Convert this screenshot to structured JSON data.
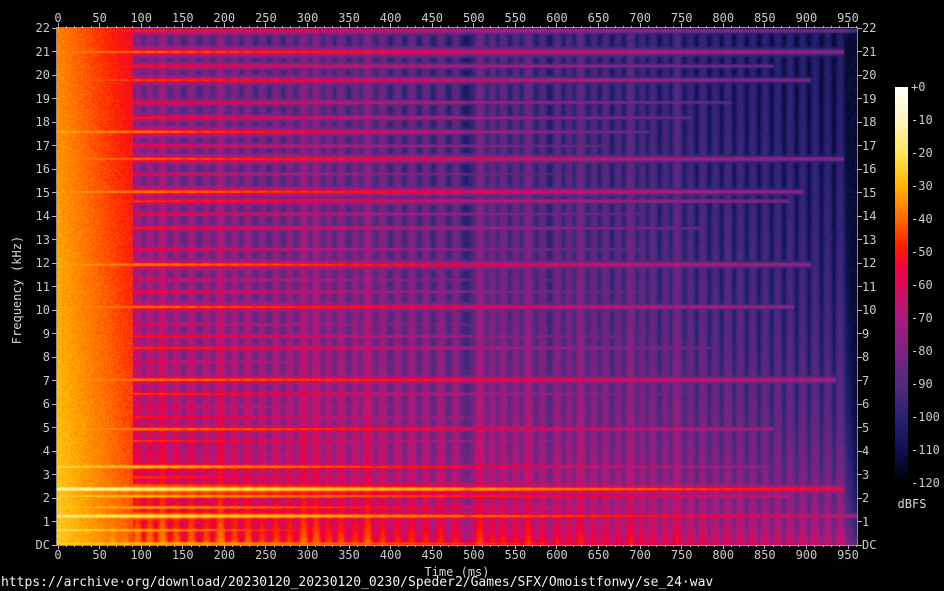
{
  "page": {
    "background": "#000000",
    "caption": "https://archive·org/download/20230120_20230120_0230/Speder2/Games/SFX/Omoistfonwy/se_24·wav"
  },
  "chart_data": {
    "type": "heatmap",
    "subtype": "audio-spectrogram",
    "title": "",
    "xlabel": "Time (ms)",
    "ylabel": "Frequency (kHz)",
    "x_range_ms": [
      0,
      961
    ],
    "y_range_khz": [
      0,
      22
    ],
    "grid": false,
    "x_ticks": {
      "values": [
        0,
        50,
        100,
        150,
        200,
        250,
        300,
        350,
        400,
        450,
        500,
        550,
        600,
        650,
        700,
        750,
        800,
        850,
        900,
        950
      ],
      "labels": [
        "0",
        "50",
        "100",
        "150",
        "200",
        "250",
        "300",
        "350",
        "400",
        "450",
        "500",
        "550",
        "600",
        "650",
        "700",
        "750",
        "800",
        "850",
        "900",
        "950"
      ],
      "minor_step_ms": 10
    },
    "y_ticks": {
      "values": [
        22,
        21,
        20,
        19,
        18,
        17,
        16,
        15,
        14,
        13,
        12,
        11,
        10,
        9,
        8,
        7,
        6,
        5,
        4,
        3,
        2,
        1,
        0
      ],
      "labels": [
        "22",
        "21",
        "20",
        "19",
        "18",
        "17",
        "16",
        "15",
        "14",
        "13",
        "12",
        "11",
        "10",
        "9",
        "8",
        "7",
        "6",
        "5",
        "4",
        "3",
        "2",
        "1",
        "DC"
      ]
    },
    "colorbar": {
      "label": "dBFS",
      "range_db": [
        0,
        -120
      ],
      "tick_labels": [
        "+0",
        "-10",
        "-20",
        "-30",
        "-40",
        "-50",
        "-60",
        "-70",
        "-80",
        "-90",
        "-100",
        "-110",
        "-120"
      ],
      "tick_values": [
        0,
        -10,
        -20,
        -30,
        -40,
        -50,
        -60,
        -70,
        -80,
        -90,
        -100,
        -110,
        -120
      ],
      "palette": [
        [
          0,
          "#ffffff"
        ],
        [
          -10,
          "#fff5c3"
        ],
        [
          -20,
          "#ffe55a"
        ],
        [
          -30,
          "#ffb400"
        ],
        [
          -40,
          "#ff6a00"
        ],
        [
          -48,
          "#ff2000"
        ],
        [
          -55,
          "#ef0040"
        ],
        [
          -62,
          "#cf0e63"
        ],
        [
          -70,
          "#a81b7d"
        ],
        [
          -80,
          "#7b2382"
        ],
        [
          -90,
          "#512a7e"
        ],
        [
          -100,
          "#2a2173"
        ],
        [
          -110,
          "#101050"
        ],
        [
          -120,
          "#000000"
        ]
      ]
    },
    "spectrogram_model": {
      "comment_free": "procedural approximation of the rendered spectrogram",
      "noise_floor_db": -113,
      "noise_lowfreq_boost_db": 4,
      "partials_f_db0_db1_t1": [
        [
          21.9,
          -50,
          -88,
          961
        ],
        [
          21.0,
          -42,
          -80,
          945
        ],
        [
          20.4,
          -52,
          -90,
          860
        ],
        [
          19.8,
          -46,
          -85,
          905
        ],
        [
          18.85,
          -52,
          -92,
          810
        ],
        [
          18.2,
          -50,
          -90,
          760
        ],
        [
          17.6,
          -36,
          -90,
          710
        ],
        [
          17.0,
          -53,
          -92,
          660
        ],
        [
          16.45,
          -42,
          -82,
          945
        ],
        [
          15.8,
          -56,
          -95,
          610
        ],
        [
          15.05,
          -38,
          -80,
          895
        ],
        [
          14.65,
          -47,
          -85,
          880
        ],
        [
          14.1,
          -53,
          -92,
          705
        ],
        [
          13.5,
          -50,
          -90,
          775
        ],
        [
          12.6,
          -54,
          -92,
          705
        ],
        [
          11.95,
          -38,
          -78,
          905
        ],
        [
          11.3,
          -56,
          -95,
          655
        ],
        [
          10.8,
          -52,
          -92,
          705
        ],
        [
          10.15,
          -40,
          -80,
          885
        ],
        [
          9.4,
          -56,
          -95,
          605
        ],
        [
          8.9,
          -50,
          -90,
          705
        ],
        [
          8.4,
          -46,
          -88,
          785
        ],
        [
          7.8,
          -55,
          -95,
          555
        ],
        [
          7.05,
          -40,
          -72,
          935
        ],
        [
          6.45,
          -45,
          -88,
          755
        ],
        [
          5.9,
          -52,
          -95,
          605
        ],
        [
          5.45,
          -48,
          -90,
          655
        ],
        [
          4.95,
          -38,
          -75,
          860
        ],
        [
          4.45,
          -45,
          -90,
          755
        ],
        [
          3.85,
          -52,
          -95,
          605
        ],
        [
          3.35,
          -28,
          -80,
          855
        ],
        [
          2.9,
          -44,
          -90,
          705
        ],
        [
          2.4,
          -16,
          -58,
          945
        ],
        [
          2.1,
          -30,
          -70,
          880
        ],
        [
          1.62,
          -32,
          -80,
          815
        ],
        [
          1.25,
          -20,
          -68,
          961
        ],
        [
          0.65,
          -26,
          -88,
          605
        ],
        [
          0.3,
          -40,
          -95,
          505
        ],
        [
          0.08,
          -30,
          -55,
          590
        ]
      ],
      "bursts_t_db": [
        [
          5,
          -28
        ],
        [
          20,
          -30
        ],
        [
          35,
          -30
        ],
        [
          50,
          -31
        ],
        [
          65,
          -30
        ],
        [
          80,
          -34
        ],
        [
          95,
          -35
        ],
        [
          110,
          -36
        ],
        [
          125,
          -33
        ],
        [
          142,
          -38
        ],
        [
          160,
          -37
        ],
        [
          178,
          -40
        ],
        [
          195,
          -34
        ],
        [
          212,
          -40
        ],
        [
          228,
          -39
        ],
        [
          245,
          -42
        ],
        [
          262,
          -41
        ],
        [
          278,
          -42
        ],
        [
          295,
          -37
        ],
        [
          310,
          -38
        ],
        [
          325,
          -43
        ],
        [
          340,
          -41
        ],
        [
          357,
          -44
        ],
        [
          372,
          -38
        ],
        [
          390,
          -43
        ],
        [
          408,
          -45
        ],
        [
          425,
          -44
        ],
        [
          442,
          -46
        ],
        [
          460,
          -45
        ],
        [
          478,
          -47
        ],
        [
          507,
          -42
        ],
        [
          522,
          -48
        ],
        [
          535,
          -47
        ],
        [
          550,
          -49
        ],
        [
          565,
          -44
        ],
        [
          582,
          -50
        ],
        [
          600,
          -49
        ],
        [
          614,
          -51
        ],
        [
          628,
          -46
        ],
        [
          644,
          -52
        ],
        [
          658,
          -51
        ],
        [
          673,
          -53
        ],
        [
          688,
          -48
        ],
        [
          702,
          -54
        ],
        [
          715,
          -53
        ],
        [
          730,
          -55
        ],
        [
          744,
          -50
        ],
        [
          760,
          -56
        ],
        [
          775,
          -55
        ],
        [
          790,
          -57
        ],
        [
          805,
          -56
        ],
        [
          820,
          -57
        ],
        [
          835,
          -58
        ],
        [
          850,
          -58
        ],
        [
          865,
          -59
        ],
        [
          880,
          -59
        ],
        [
          895,
          -60
        ],
        [
          910,
          -60
        ],
        [
          925,
          -61
        ],
        [
          940,
          -61
        ]
      ],
      "burst_freq_rolloff_db_per_log": 30,
      "partial_burst_boost_db": 7,
      "attack": {
        "t_end_ms": 90,
        "db0": -26,
        "freq_slope_db_per_khz": 0.5,
        "time_slope_db_per_ms": 0.18
      }
    }
  }
}
